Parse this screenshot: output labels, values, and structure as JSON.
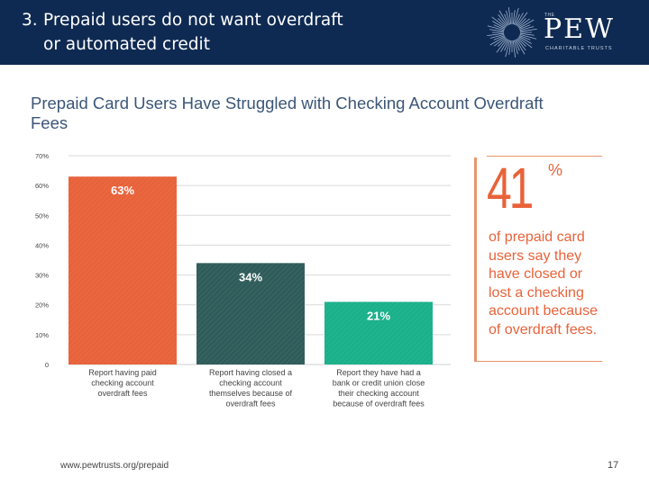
{
  "slide": {
    "number": "3.",
    "title_line1": "Prepaid users do not want overdraft",
    "title_line2": "or automated credit",
    "footer_url": "www.pewtrusts.org/prepaid",
    "page_number": "17"
  },
  "logo": {
    "the": "THE",
    "name": "PEW",
    "subtitle": "CHARITABLE TRUSTS"
  },
  "callout": {
    "number": "41",
    "symbol": "%",
    "text": "of prepaid card users say they have closed or lost a checking account because of overdraft fees."
  },
  "colors": {
    "header": "#0f2a52",
    "title": "#3b5678",
    "accent": "#e8623a",
    "bar1": "#e8623a",
    "bar2": "#2f5c5a",
    "bar3": "#1ab08a"
  },
  "chart_data": {
    "type": "bar",
    "title": "Prepaid Card Users Have Struggled with Checking Account Overdraft Fees",
    "y_ticks": [
      "70%",
      "60%",
      "50%",
      "40%",
      "30%",
      "20%",
      "10%",
      "0"
    ],
    "ylim": [
      0,
      70
    ],
    "categories": [
      [
        "Report having paid",
        "checking account",
        "overdraft fees"
      ],
      [
        "Report having closed a",
        "checking account",
        "themselves because of",
        "overdraft fees"
      ],
      [
        "Report they have had a",
        "bank or credit union close",
        "their checking account",
        "because of overdraft fees"
      ]
    ],
    "values": [
      63,
      34,
      21
    ],
    "labels": [
      "63%",
      "34%",
      "21%"
    ]
  }
}
